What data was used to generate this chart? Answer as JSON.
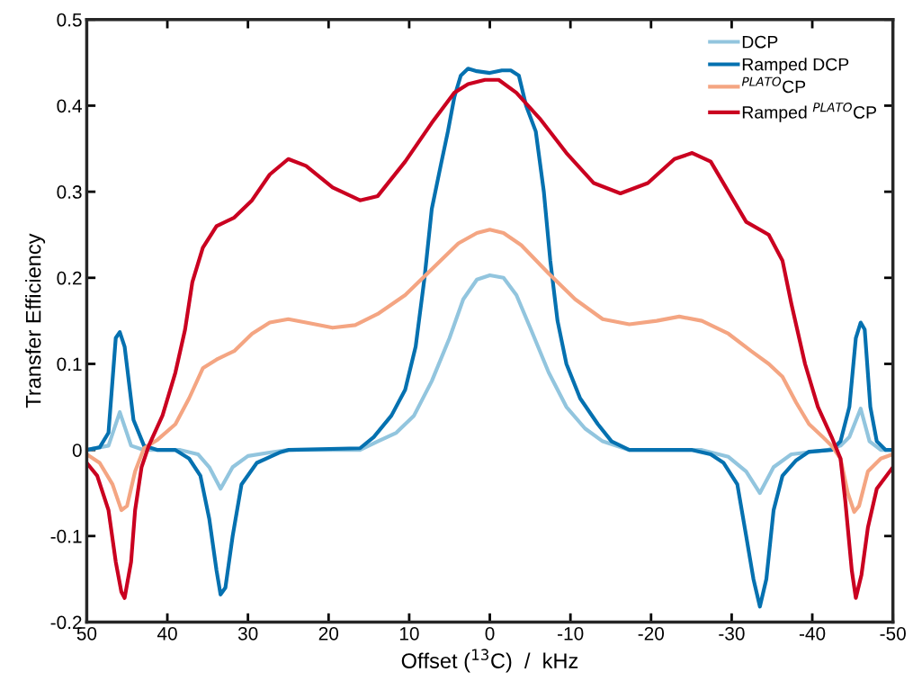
{
  "chart_data": {
    "type": "line",
    "xlabel": "Offset ($^{13}$C)  /  kHz",
    "ylabel": "Transfer Efficiency",
    "xlim": [
      50,
      -50
    ],
    "xticks": [
      50,
      40,
      30,
      20,
      10,
      0,
      -10,
      -20,
      -30,
      -40,
      -50
    ],
    "ylim": [
      -0.2,
      0.5
    ],
    "yticks": [
      -0.2,
      -0.1,
      0,
      0.1,
      0.2,
      0.3,
      0.4,
      0.5
    ],
    "grid": false,
    "legend": "top right",
    "marker": "none",
    "line_style": "solid",
    "series": [
      {
        "name": "DCP",
        "color": "#92c5de",
        "x": [
          50,
          47.3,
          45.9,
          44.5,
          42.9,
          38.4,
          36.2,
          34.8,
          33.4,
          31.9,
          30,
          27.3,
          25,
          16.1,
          13.9,
          11.6,
          9.4,
          7.2,
          5,
          3.3,
          1.6,
          0,
          -1.7,
          -3.3,
          -5.1,
          -7.3,
          -9.5,
          -11.8,
          -14,
          -17.3,
          -26.3,
          -29.6,
          -31.8,
          -33.5,
          -35.2,
          -37.4,
          -41.9,
          -43.5,
          -44.6,
          -46,
          -47.1,
          -48.5,
          -50
        ],
        "values": [
          0,
          0.005,
          0.044,
          0.005,
          0,
          0,
          -0.005,
          -0.02,
          -0.045,
          -0.02,
          -0.007,
          -0.003,
          0,
          0,
          0.01,
          0.02,
          0.04,
          0.08,
          0.13,
          0.175,
          0.198,
          0.203,
          0.2,
          0.18,
          0.14,
          0.09,
          0.05,
          0.025,
          0.01,
          0,
          0,
          -0.008,
          -0.025,
          -0.05,
          -0.02,
          -0.005,
          0,
          0.005,
          0.015,
          0.048,
          0.01,
          0,
          0
        ]
      },
      {
        "name": "Ramped DCP",
        "color": "#0571b0",
        "x": [
          50,
          48.4,
          47.3,
          46.4,
          45.9,
          45.3,
          44.2,
          42.9,
          41.2,
          39,
          37.3,
          35.9,
          34.8,
          33.9,
          33.4,
          32.8,
          31.9,
          30.8,
          28.9,
          26.1,
          25,
          16.1,
          14.4,
          12.2,
          10.5,
          9.2,
          8.1,
          7.2,
          6.1,
          5.2,
          4.4,
          3.6,
          2.7,
          1.6,
          0,
          -1.5,
          -2.6,
          -3.6,
          -4.5,
          -5.7,
          -6.7,
          -7.5,
          -8.4,
          -9.5,
          -11.2,
          -13.4,
          -15.1,
          -17.3,
          -25.1,
          -27.4,
          -29,
          -30.7,
          -31.8,
          -32.7,
          -33.5,
          -34.3,
          -35.2,
          -36.3,
          -38,
          -39.6,
          -42.4,
          -43.5,
          -44.6,
          -45.4,
          -46,
          -46.5,
          -47.2,
          -48,
          -49.1,
          -50
        ],
        "values": [
          0,
          0.003,
          0.02,
          0.13,
          0.137,
          0.12,
          0.035,
          0.005,
          0,
          0,
          -0.01,
          -0.03,
          -0.08,
          -0.14,
          -0.168,
          -0.16,
          -0.1,
          -0.04,
          -0.015,
          -0.003,
          0,
          0.002,
          0.015,
          0.04,
          0.07,
          0.12,
          0.2,
          0.28,
          0.33,
          0.37,
          0.41,
          0.435,
          0.443,
          0.44,
          0.438,
          0.441,
          0.441,
          0.435,
          0.4,
          0.37,
          0.3,
          0.22,
          0.15,
          0.1,
          0.06,
          0.03,
          0.01,
          0,
          0,
          -0.005,
          -0.015,
          -0.04,
          -0.1,
          -0.15,
          -0.182,
          -0.15,
          -0.07,
          -0.03,
          -0.012,
          -0.002,
          0,
          0.01,
          0.05,
          0.13,
          0.148,
          0.14,
          0.05,
          0.01,
          0,
          0
        ]
      },
      {
        "name": "$^{PLATO}$CP",
        "color": "#f4a582",
        "x": [
          50,
          48.4,
          46.8,
          45.7,
          45,
          44,
          42.9,
          41.2,
          39,
          37.3,
          35.6,
          33.9,
          31.7,
          29.5,
          27.3,
          25,
          22.8,
          19.5,
          16.7,
          13.9,
          10.5,
          7.2,
          3.9,
          1.6,
          0,
          -1.7,
          -3.9,
          -7.3,
          -10.6,
          -14,
          -17.3,
          -20.7,
          -23.5,
          -26.3,
          -29.6,
          -32.4,
          -34.6,
          -36.3,
          -38,
          -39.6,
          -41.3,
          -42.4,
          -43.5,
          -44.4,
          -45.2,
          -45.8,
          -46.9,
          -48.5,
          -50
        ],
        "values": [
          -0.005,
          -0.015,
          -0.04,
          -0.07,
          -0.065,
          -0.025,
          0.002,
          0.012,
          0.03,
          0.06,
          0.095,
          0.105,
          0.115,
          0.135,
          0.148,
          0.152,
          0.148,
          0.142,
          0.145,
          0.158,
          0.18,
          0.21,
          0.24,
          0.252,
          0.256,
          0.252,
          0.238,
          0.205,
          0.175,
          0.152,
          0.146,
          0.15,
          0.155,
          0.15,
          0.135,
          0.115,
          0.1,
          0.085,
          0.055,
          0.03,
          0.015,
          0.005,
          -0.01,
          -0.05,
          -0.072,
          -0.065,
          -0.025,
          -0.01,
          -0.005
        ]
      },
      {
        "name": "Ramped $^{PLATO}$CP",
        "color": "#ca0020",
        "x": [
          50,
          48.7,
          47.3,
          46.4,
          45.7,
          45.3,
          44.5,
          44,
          43.2,
          42.3,
          40.6,
          39,
          37.8,
          36.9,
          35.6,
          33.9,
          31.7,
          29.5,
          27.3,
          25,
          22.8,
          19.5,
          16.1,
          13.9,
          10.5,
          7.2,
          4.4,
          2.7,
          0.6,
          -1.1,
          -3.3,
          -6.2,
          -9.5,
          -12.9,
          -16.2,
          -19.6,
          -22.9,
          -25.1,
          -27.4,
          -29.6,
          -31.8,
          -34.6,
          -36.3,
          -37.4,
          -39.1,
          -40.7,
          -42.4,
          -43.5,
          -44.1,
          -44.9,
          -45.4,
          -46.1,
          -46.9,
          -48,
          -50
        ],
        "values": [
          -0.015,
          -0.03,
          -0.07,
          -0.13,
          -0.165,
          -0.172,
          -0.13,
          -0.07,
          -0.02,
          0.005,
          0.04,
          0.09,
          0.14,
          0.195,
          0.235,
          0.26,
          0.27,
          0.29,
          0.32,
          0.338,
          0.33,
          0.305,
          0.29,
          0.295,
          0.335,
          0.38,
          0.415,
          0.425,
          0.43,
          0.43,
          0.415,
          0.385,
          0.345,
          0.31,
          0.298,
          0.31,
          0.338,
          0.345,
          0.335,
          0.3,
          0.265,
          0.25,
          0.22,
          0.17,
          0.1,
          0.05,
          0.015,
          -0.01,
          -0.06,
          -0.14,
          -0.172,
          -0.145,
          -0.09,
          -0.045,
          -0.02
        ]
      }
    ]
  }
}
